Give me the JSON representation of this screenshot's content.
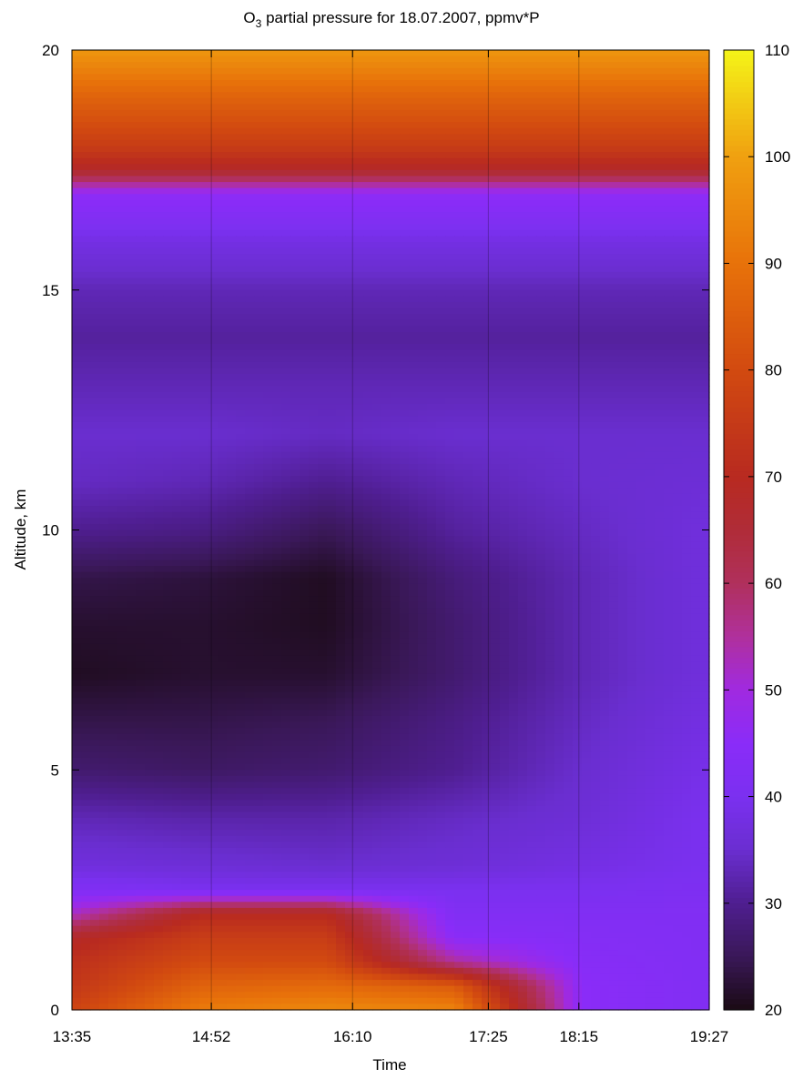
{
  "chart_data": {
    "type": "heatmap",
    "title": {
      "prefix": "O",
      "subscript": "3",
      "suffix": " partial pressure for 18.07.2007, ppmv*P"
    },
    "xlabel": "Time",
    "ylabel": "Altitude, km",
    "x": [
      "13:35",
      "14:52",
      "16:10",
      "17:25",
      "18:15",
      "19:27"
    ],
    "x_tick_labels": [
      "13:35",
      "14:52",
      "16:10",
      "17:25",
      "18:15",
      "19:27"
    ],
    "y_ticks": [
      0,
      5,
      10,
      15,
      20
    ],
    "ylim": [
      0,
      20
    ],
    "colorbar": {
      "range": [
        20,
        110
      ],
      "ticks": [
        20,
        30,
        40,
        50,
        60,
        70,
        80,
        90,
        100,
        110
      ],
      "colormap": [
        {
          "value": 20,
          "color": "#1a0a14"
        },
        {
          "value": 25,
          "color": "#3a1858"
        },
        {
          "value": 30,
          "color": "#4f1e90"
        },
        {
          "value": 35,
          "color": "#6a2ed0"
        },
        {
          "value": 40,
          "color": "#7b30f0"
        },
        {
          "value": 45,
          "color": "#8a2cf8"
        },
        {
          "value": 50,
          "color": "#a02ae0"
        },
        {
          "value": 55,
          "color": "#b0309c"
        },
        {
          "value": 60,
          "color": "#b0305c"
        },
        {
          "value": 65,
          "color": "#b02c38"
        },
        {
          "value": 70,
          "color": "#b82a20"
        },
        {
          "value": 80,
          "color": "#d24a10"
        },
        {
          "value": 90,
          "color": "#e8720a"
        },
        {
          "value": 100,
          "color": "#f0a010"
        },
        {
          "value": 110,
          "color": "#f4f418"
        }
      ]
    },
    "altitudes_km": [
      0,
      0.5,
      1,
      1.5,
      2,
      2.5,
      3,
      4,
      5,
      6,
      7,
      8,
      9,
      10,
      11,
      12,
      13,
      14,
      15,
      16,
      17,
      17.5,
      18,
      19,
      20
    ],
    "values": [
      [
        78,
        92,
        95,
        94,
        45,
        42
      ],
      [
        74,
        86,
        88,
        84,
        45,
        42
      ],
      [
        72,
        80,
        80,
        55,
        44,
        42
      ],
      [
        68,
        76,
        76,
        45,
        43,
        42
      ],
      [
        52,
        70,
        70,
        42,
        42,
        42
      ],
      [
        42,
        40,
        40,
        40,
        40,
        41
      ],
      [
        37,
        36,
        35,
        36,
        38,
        40
      ],
      [
        33,
        32,
        32,
        34,
        36,
        40
      ],
      [
        27,
        26,
        27,
        30,
        35,
        39
      ],
      [
        24,
        24,
        25,
        29,
        34,
        38
      ],
      [
        21,
        22,
        22,
        27,
        33,
        37
      ],
      [
        22,
        22,
        21,
        27,
        33,
        37
      ],
      [
        24,
        23,
        21,
        28,
        33,
        37
      ],
      [
        30,
        29,
        25,
        31,
        34,
        37
      ],
      [
        34,
        33,
        30,
        33,
        35,
        36
      ],
      [
        35,
        35,
        34,
        35,
        35,
        35
      ],
      [
        33,
        33,
        33,
        33,
        33,
        33
      ],
      [
        31,
        31,
        31,
        31,
        31,
        31
      ],
      [
        33,
        33,
        33,
        33,
        33,
        33
      ],
      [
        38,
        38,
        38,
        38,
        38,
        38
      ],
      [
        46,
        46,
        46,
        46,
        46,
        46
      ],
      [
        68,
        68,
        68,
        68,
        68,
        68
      ],
      [
        76,
        76,
        76,
        76,
        76,
        76
      ],
      [
        86,
        86,
        86,
        86,
        86,
        86
      ],
      [
        98,
        98,
        98,
        98,
        98,
        98
      ]
    ],
    "grid": true,
    "legend": "colorbar-right"
  }
}
